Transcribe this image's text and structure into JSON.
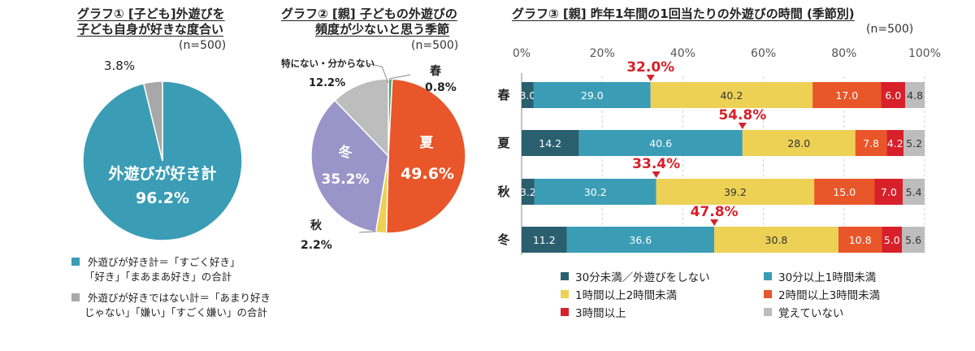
{
  "chart1": {
    "title_line1": "グラフ① [子ども]外遊びを",
    "title_line2": "子ども自身が好きな度合い",
    "n": "(n=500)",
    "center_label": "外遊びが好き計",
    "center_value": "96.2%",
    "small_label": "3.8%",
    "legend": [
      {
        "line1": "外遊びが好き計＝「すごく好き」",
        "line2": "「好き」「まあまあ好き」の合計",
        "color": "#3a9db5"
      },
      {
        "line1": "外遊びが好きではない計＝「あまり好き",
        "line2": "じゃない」「嫌い」「すごく嫌い」の合計",
        "color": "#a8a8a8"
      }
    ]
  },
  "chart2": {
    "title_line1": "グラフ② [親] 子どもの外遊びの",
    "title_line2": "頻度が少ないと思う季節",
    "n": "(n=500)",
    "summer_label": "夏",
    "summer_value": "49.6%",
    "winter_label": "冬",
    "winter_value": "35.2%",
    "spring_label": "春",
    "spring_value": "0.8%",
    "autumn_label": "秋",
    "autumn_value": "2.2%",
    "other_label": "特にない・分からない",
    "other_value": "12.2%"
  },
  "chart3": {
    "title": "グラフ③ [親] 昨年1年間の1回当たりの外遊びの時間 (季節別)",
    "n": "(n=500)",
    "axis_ticks": [
      "0%",
      "20%",
      "40%",
      "60%",
      "80%",
      "100%"
    ],
    "rows": [
      {
        "label": "春",
        "callout": "32.0%",
        "values": [
          "3.0",
          "29.0",
          "40.2",
          "17.0",
          "6.0",
          "4.8"
        ]
      },
      {
        "label": "夏",
        "callout": "54.8%",
        "values": [
          "14.2",
          "40.6",
          "28.0",
          "7.8",
          "4.2",
          "5.2"
        ]
      },
      {
        "label": "秋",
        "callout": "33.4%",
        "values": [
          "3.2",
          "30.2",
          "39.2",
          "15.0",
          "7.0",
          "5.4"
        ]
      },
      {
        "label": "冬",
        "callout": "47.8%",
        "values": [
          "11.2",
          "36.6",
          "30.8",
          "10.8",
          "5.0",
          "5.6"
        ]
      }
    ],
    "legend": [
      "30分未満／外遊びをしない",
      "30分以上1時間未満",
      "1時間以上2時間未満",
      "2時間以上3時間未満",
      "3時間以上",
      "覚えていない"
    ]
  },
  "colors": {
    "c1": "#2a5f6f",
    "c2": "#3a9db5",
    "c3": "#ecd155",
    "c4": "#e8562a",
    "c5": "#d72029",
    "c6": "#bdbdbd",
    "callout": "#d72029",
    "winter": "#9a95c9"
  },
  "chart_data": [
    {
      "type": "pie",
      "title": "グラフ① [子ども]外遊びを子ども自身が好きな度合い",
      "categories": [
        "外遊びが好き計",
        "外遊びが好きではない計"
      ],
      "values": [
        96.2,
        3.8
      ]
    },
    {
      "type": "pie",
      "title": "グラフ② [親] 子どもの外遊びの頻度が少ないと思う季節",
      "categories": [
        "春",
        "夏",
        "秋",
        "冬",
        "特にない・分からない"
      ],
      "values": [
        0.8,
        49.6,
        2.2,
        35.2,
        12.2
      ]
    },
    {
      "type": "bar",
      "title": "グラフ③ [親] 昨年1年間の1回当たりの外遊びの時間 (季節別)",
      "categories": [
        "春",
        "夏",
        "秋",
        "冬"
      ],
      "xlim": [
        0,
        100
      ],
      "series": [
        {
          "name": "30分未満／外遊びをしない",
          "values": [
            3.0,
            14.2,
            3.2,
            11.2
          ]
        },
        {
          "name": "30分以上1時間未満",
          "values": [
            29.0,
            40.6,
            30.2,
            36.6
          ]
        },
        {
          "name": "1時間以上2時間未満",
          "values": [
            40.2,
            28.0,
            39.2,
            30.8
          ]
        },
        {
          "name": "2時間以上3時間未満",
          "values": [
            17.0,
            7.8,
            15.0,
            10.8
          ]
        },
        {
          "name": "3時間以上",
          "values": [
            6.0,
            4.2,
            7.0,
            5.0
          ]
        },
        {
          "name": "覚えていない",
          "values": [
            4.8,
            5.2,
            5.4,
            5.6
          ]
        }
      ]
    }
  ]
}
